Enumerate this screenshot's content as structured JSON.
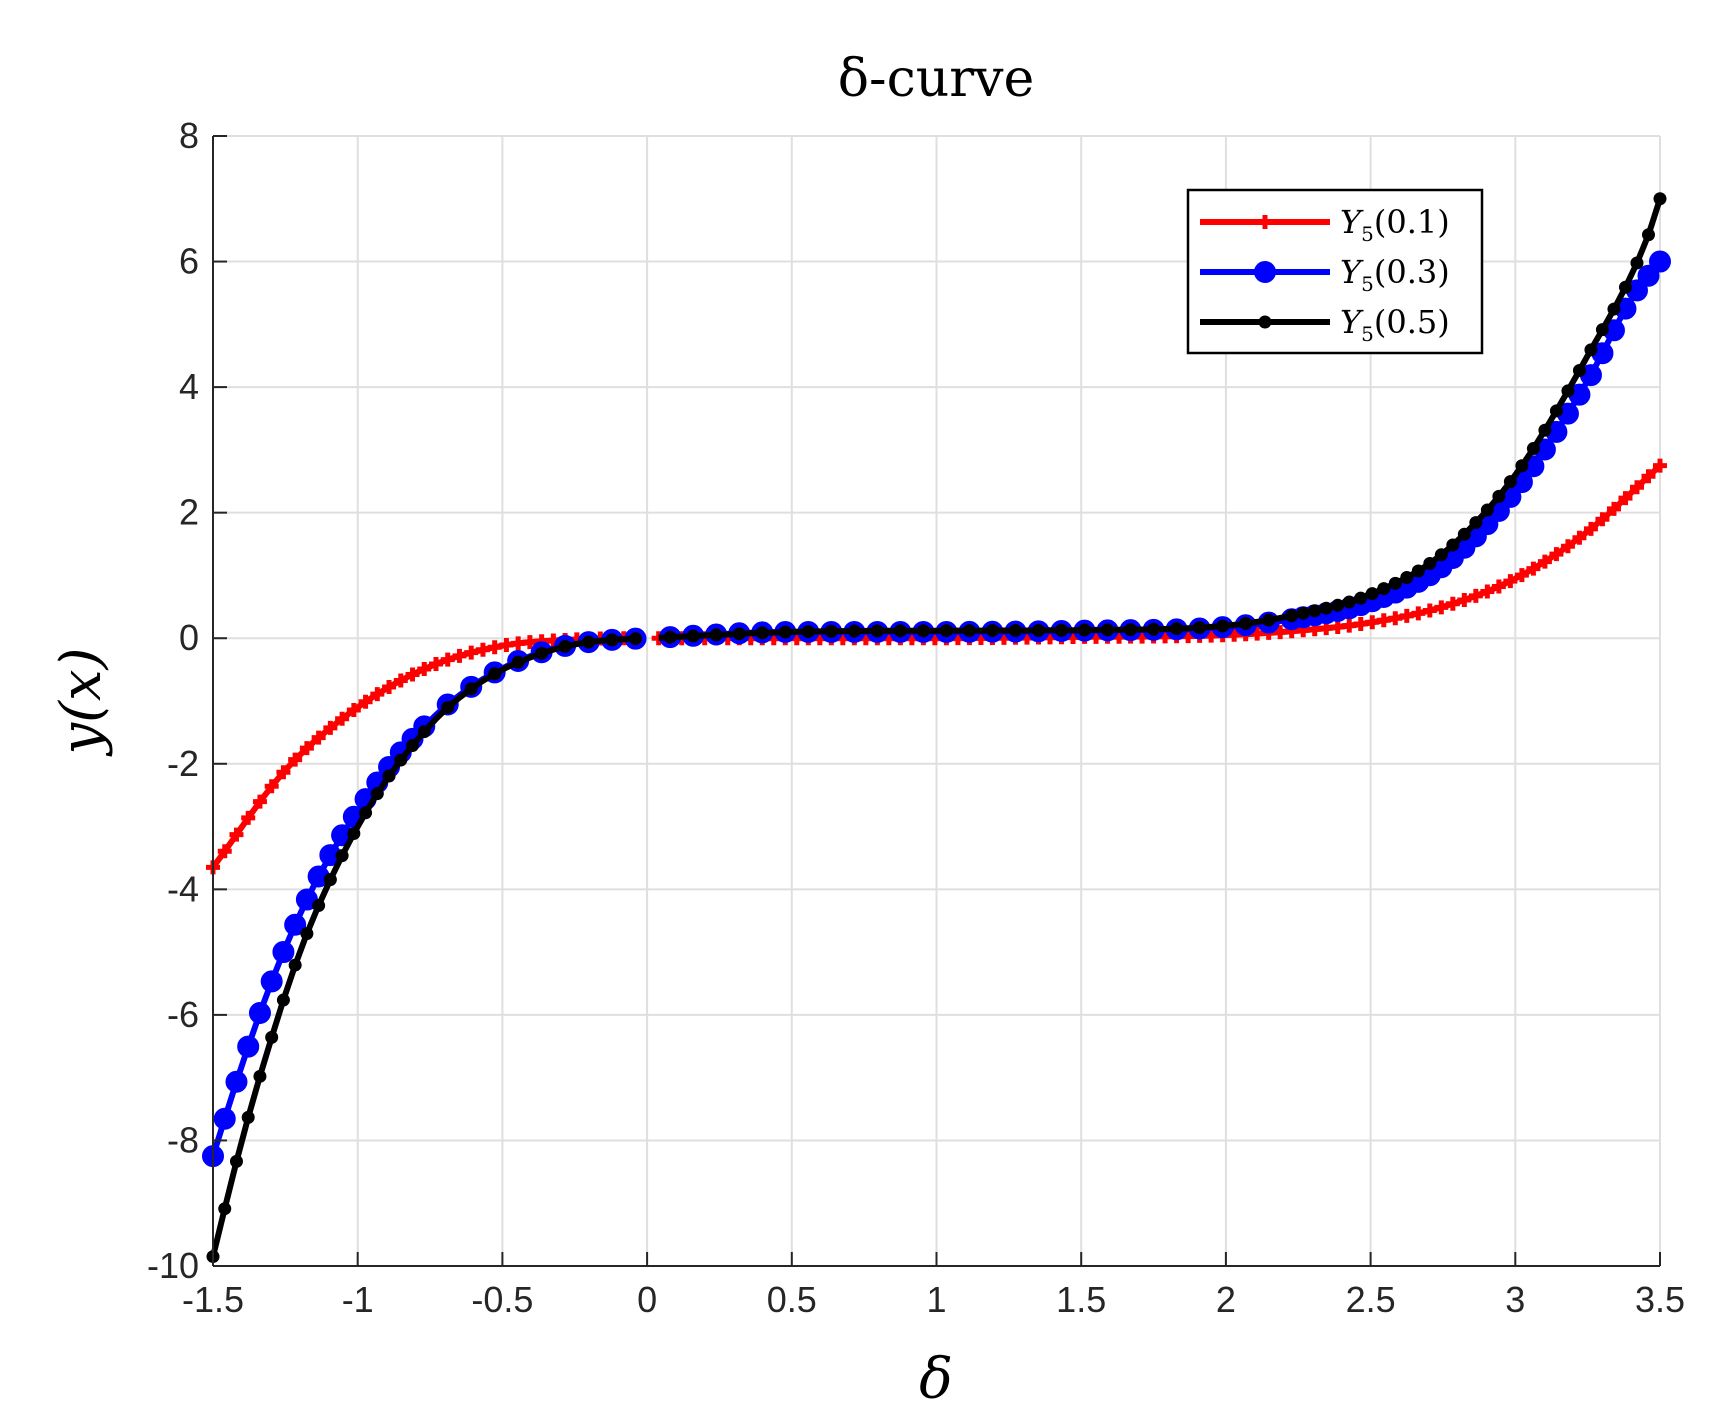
{
  "chart_data": {
    "type": "line",
    "title": "δ-curve",
    "xlabel": "δ",
    "ylabel": "y(x)",
    "xlim": [
      -1.5,
      3.5
    ],
    "ylim": [
      -10,
      8
    ],
    "xticks": [
      -1.5,
      -1,
      -0.5,
      0,
      0.5,
      1,
      1.5,
      2,
      2.5,
      3,
      3.5
    ],
    "xtick_labels": [
      "-1.5",
      "-1",
      "-0.5",
      "0",
      "0.5",
      "1",
      "1.5",
      "2",
      "2.5",
      "3",
      "3.5"
    ],
    "yticks": [
      -10,
      -8,
      -6,
      -4,
      -2,
      0,
      2,
      4,
      6,
      8
    ],
    "ytick_labels": [
      "-10",
      "-8",
      "-6",
      "-4",
      "-2",
      "0",
      "2",
      "4",
      "6",
      "8"
    ],
    "grid": true,
    "legend_position": "top-right",
    "x_gap": [
      -0.04,
      0.04
    ],
    "series": [
      {
        "name": "Y5(0.1)",
        "legend_main": "Y",
        "legend_sub": "5",
        "legend_arg": "(0.1)",
        "color": "#ff0000",
        "marker": "plus",
        "points": [
          [
            -1.5,
            -3.65
          ],
          [
            -1.25,
            -2.1
          ],
          [
            -1.0,
            -1.1
          ],
          [
            -0.75,
            -0.45
          ],
          [
            -0.5,
            -0.12
          ],
          [
            -0.25,
            -0.02
          ],
          [
            0.0,
            0.0
          ],
          [
            0.5,
            0.0
          ],
          [
            1.0,
            0.0
          ],
          [
            1.5,
            0.02
          ],
          [
            2.0,
            0.05
          ],
          [
            2.25,
            0.12
          ],
          [
            2.5,
            0.25
          ],
          [
            2.75,
            0.5
          ],
          [
            3.0,
            0.95
          ],
          [
            3.25,
            1.7
          ],
          [
            3.5,
            2.75
          ]
        ]
      },
      {
        "name": "Y5(0.3)",
        "legend_main": "Y",
        "legend_sub": "5",
        "legend_arg": "(0.3)",
        "color": "#0000ff",
        "marker": "circle",
        "points": [
          [
            -1.5,
            -8.25
          ],
          [
            -1.4,
            -6.8
          ],
          [
            -1.3,
            -5.5
          ],
          [
            -1.2,
            -4.4
          ],
          [
            -1.1,
            -3.5
          ],
          [
            -1.0,
            -2.75
          ],
          [
            -0.9,
            -2.1
          ],
          [
            -0.8,
            -1.55
          ],
          [
            -0.7,
            -1.1
          ],
          [
            -0.6,
            -0.75
          ],
          [
            -0.5,
            -0.48
          ],
          [
            -0.4,
            -0.28
          ],
          [
            -0.3,
            -0.14
          ],
          [
            -0.2,
            -0.06
          ],
          [
            -0.1,
            -0.02
          ],
          [
            0.0,
            0.0
          ],
          [
            0.5,
            0.1
          ],
          [
            1.0,
            0.1
          ],
          [
            1.5,
            0.12
          ],
          [
            2.0,
            0.18
          ],
          [
            2.25,
            0.32
          ],
          [
            2.5,
            0.58
          ],
          [
            2.75,
            1.15
          ],
          [
            3.0,
            2.35
          ],
          [
            3.25,
            4.1
          ],
          [
            3.4,
            5.4
          ],
          [
            3.5,
            6.0
          ]
        ]
      },
      {
        "name": "Y5(0.5)",
        "legend_main": "Y",
        "legend_sub": "5",
        "legend_arg": "(0.5)",
        "color": "#000000",
        "marker": "dot",
        "points": [
          [
            -1.5,
            -9.85
          ],
          [
            -1.4,
            -8.0
          ],
          [
            -1.3,
            -6.4
          ],
          [
            -1.2,
            -5.0
          ],
          [
            -1.1,
            -3.9
          ],
          [
            -1.0,
            -3.0
          ],
          [
            -0.9,
            -2.25
          ],
          [
            -0.8,
            -1.65
          ],
          [
            -0.7,
            -1.15
          ],
          [
            -0.6,
            -0.78
          ],
          [
            -0.5,
            -0.5
          ],
          [
            -0.4,
            -0.3
          ],
          [
            -0.3,
            -0.15
          ],
          [
            -0.2,
            -0.06
          ],
          [
            -0.1,
            -0.02
          ],
          [
            0.0,
            0.0
          ],
          [
            0.5,
            0.1
          ],
          [
            1.0,
            0.12
          ],
          [
            1.5,
            0.13
          ],
          [
            2.0,
            0.2
          ],
          [
            2.25,
            0.38
          ],
          [
            2.5,
            0.7
          ],
          [
            2.75,
            1.35
          ],
          [
            3.0,
            2.6
          ],
          [
            3.25,
            4.5
          ],
          [
            3.45,
            6.3
          ],
          [
            3.5,
            7.0
          ]
        ]
      }
    ]
  }
}
